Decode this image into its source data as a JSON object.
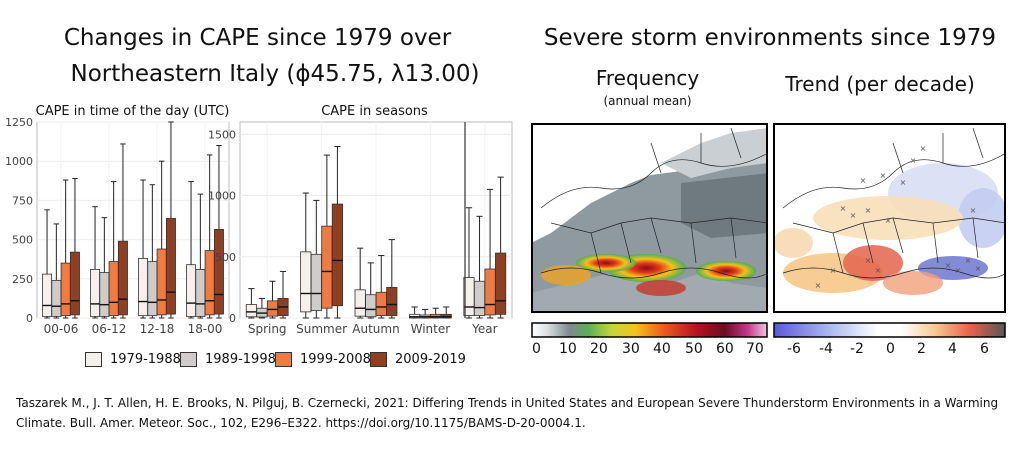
{
  "left": {
    "title_line1": "Changes in CAPE since 1979 over",
    "title_line2": "Northeastern Italy (ϕ45.75, λ13.00)"
  },
  "right": {
    "title": "Severe storm environments since 1979",
    "map1_title": "Frequency",
    "map1_subtitle": "(annual mean)",
    "map2_title": "Trend (per decade)",
    "cbar1_ticks": [
      "0",
      "10",
      "20",
      "30",
      "40",
      "50",
      "60",
      "70"
    ],
    "cbar2_ticks": [
      "-6",
      "-4",
      "-2",
      "0",
      "2",
      "4",
      "6"
    ]
  },
  "legend": [
    {
      "label": "1979-1988",
      "color": "#f5f0eb"
    },
    {
      "label": "1989-1998",
      "color": "#cfcccb"
    },
    {
      "label": "1999-2008",
      "color": "#ef7a43"
    },
    {
      "label": "2009-2019",
      "color": "#8f3f22"
    }
  ],
  "citation_line1": "Taszarek M., J. T. Allen, H. E. Brooks, N. Pilguj, B. Czernecki, 2021: Differing Trends in United States and European Severe Thunderstorm Environments in a Warming",
  "citation_line2": "Climate. Bull. Amer. Meteor. Soc., 102, E296–E322. https://doi.org/10.1175/BAMS-D-20-0004.1.",
  "chart_data": [
    {
      "type": "boxplot",
      "title": "CAPE in time of the day (UTC)",
      "ylim": [
        0,
        1250
      ],
      "yticks": [
        0,
        250,
        500,
        750,
        1000,
        1250
      ],
      "categories": [
        "00-06",
        "06-12",
        "12-18",
        "18-00"
      ],
      "series_names": [
        "1979-1988",
        "1989-1998",
        "1999-2008",
        "2009-2019"
      ],
      "boxes": [
        [
          [
            0,
            10,
            80,
            280,
            690
          ],
          [
            0,
            10,
            75,
            240,
            600
          ],
          [
            0,
            15,
            90,
            350,
            880
          ],
          [
            0,
            20,
            110,
            420,
            890
          ]
        ],
        [
          [
            0,
            10,
            90,
            310,
            710
          ],
          [
            0,
            10,
            85,
            290,
            640
          ],
          [
            0,
            15,
            100,
            360,
            870
          ],
          [
            0,
            20,
            120,
            490,
            1110
          ]
        ],
        [
          [
            0,
            15,
            105,
            380,
            880
          ],
          [
            0,
            15,
            100,
            360,
            850
          ],
          [
            0,
            20,
            115,
            440,
            1000
          ],
          [
            0,
            25,
            165,
            635,
            1250
          ]
        ],
        [
          [
            0,
            10,
            95,
            340,
            870
          ],
          [
            0,
            10,
            90,
            310,
            790
          ],
          [
            0,
            20,
            110,
            430,
            1040
          ],
          [
            0,
            25,
            150,
            565,
            1100
          ]
        ]
      ]
    },
    {
      "type": "boxplot",
      "title": "CAPE in seasons",
      "ylim": [
        0,
        1600
      ],
      "yticks": [
        0,
        500,
        1000,
        1500
      ],
      "categories": [
        "Spring",
        "Summer",
        "Autumn",
        "Winter",
        "Year"
      ],
      "series_names": [
        "1979-1988",
        "1989-1998",
        "1999-2008",
        "2009-2019"
      ],
      "boxes": [
        [
          [
            0,
            10,
            50,
            110,
            240
          ],
          [
            0,
            8,
            40,
            80,
            160
          ],
          [
            0,
            15,
            70,
            140,
            300
          ],
          [
            0,
            20,
            90,
            160,
            380
          ]
        ],
        [
          [
            0,
            50,
            200,
            540,
            1020
          ],
          [
            0,
            60,
            200,
            520,
            960
          ],
          [
            0,
            80,
            380,
            750,
            1330
          ],
          [
            0,
            100,
            470,
            930,
            1400
          ]
        ],
        [
          [
            0,
            15,
            80,
            230,
            570
          ],
          [
            0,
            10,
            70,
            190,
            450
          ],
          [
            0,
            20,
            90,
            210,
            510
          ],
          [
            0,
            20,
            110,
            250,
            640
          ]
        ],
        [
          [
            0,
            0,
            10,
            30,
            90
          ],
          [
            0,
            0,
            10,
            25,
            70
          ],
          [
            0,
            0,
            10,
            30,
            80
          ],
          [
            0,
            0,
            10,
            30,
            90
          ]
        ],
        [
          [
            0,
            20,
            90,
            330,
            900
          ],
          [
            0,
            20,
            85,
            300,
            830
          ],
          [
            0,
            25,
            110,
            400,
            1050
          ],
          [
            0,
            30,
            140,
            530,
            1150
          ]
        ]
      ]
    }
  ]
}
